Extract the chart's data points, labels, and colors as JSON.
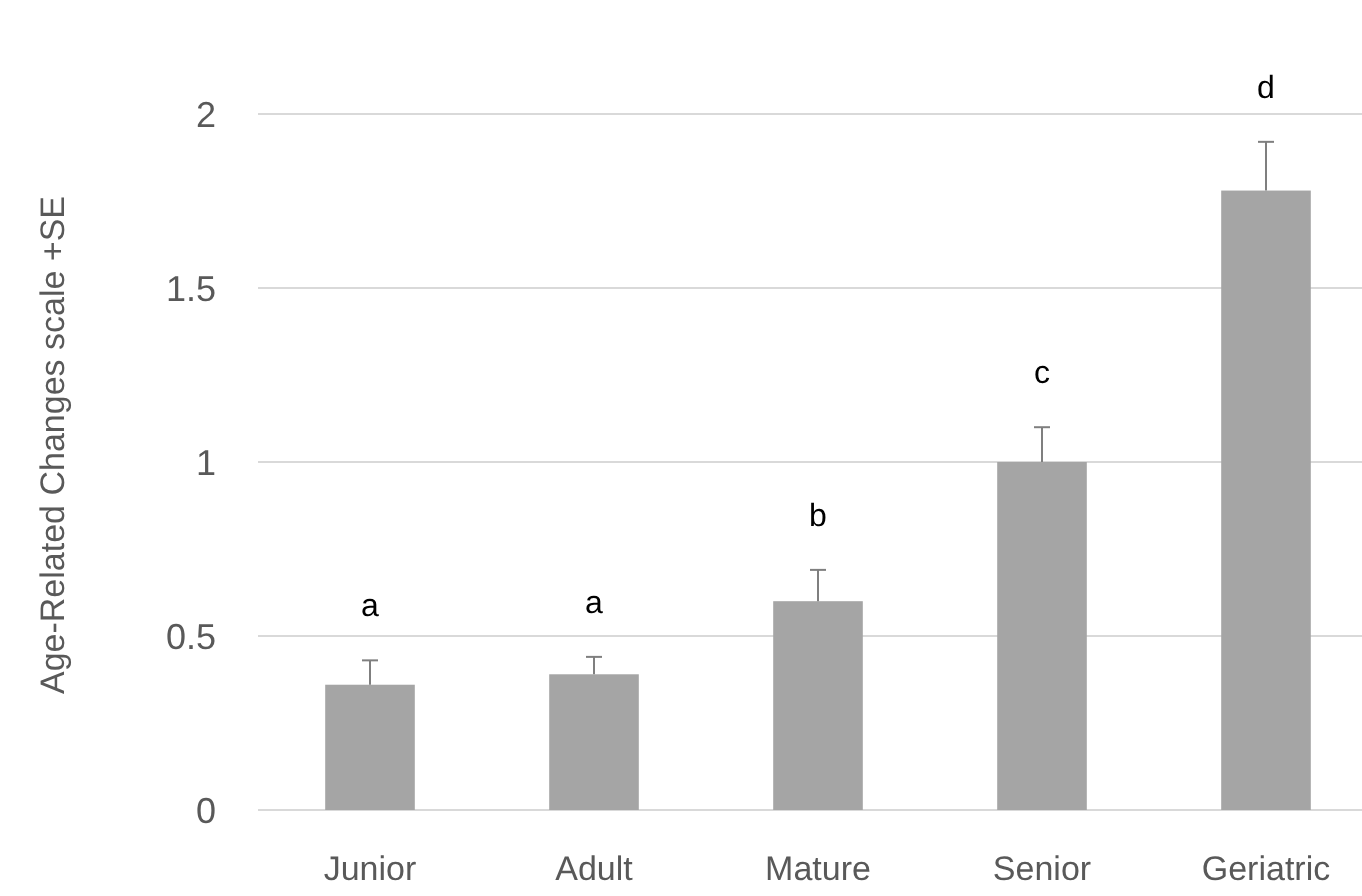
{
  "chart_data": {
    "type": "bar",
    "ylabel": "Age-Related Changes scale +SE",
    "categories": [
      "Junior",
      "Adult",
      "Mature",
      "Senior",
      "Geriatric"
    ],
    "values": [
      0.36,
      0.39,
      0.6,
      1.0,
      1.78
    ],
    "color": "#a5a5a5",
    "errors": [
      [
        0.36,
        0.43
      ],
      [
        0.39,
        0.44
      ],
      [
        0.6,
        0.69
      ],
      [
        1.0,
        1.1
      ],
      [
        1.78,
        1.92
      ]
    ],
    "ylim": [
      0,
      2
    ],
    "yticks": [
      0,
      0.5,
      1,
      1.5,
      2
    ],
    "grid": "y",
    "annotations": [
      "a",
      "a",
      "b",
      "c",
      "d"
    ]
  }
}
